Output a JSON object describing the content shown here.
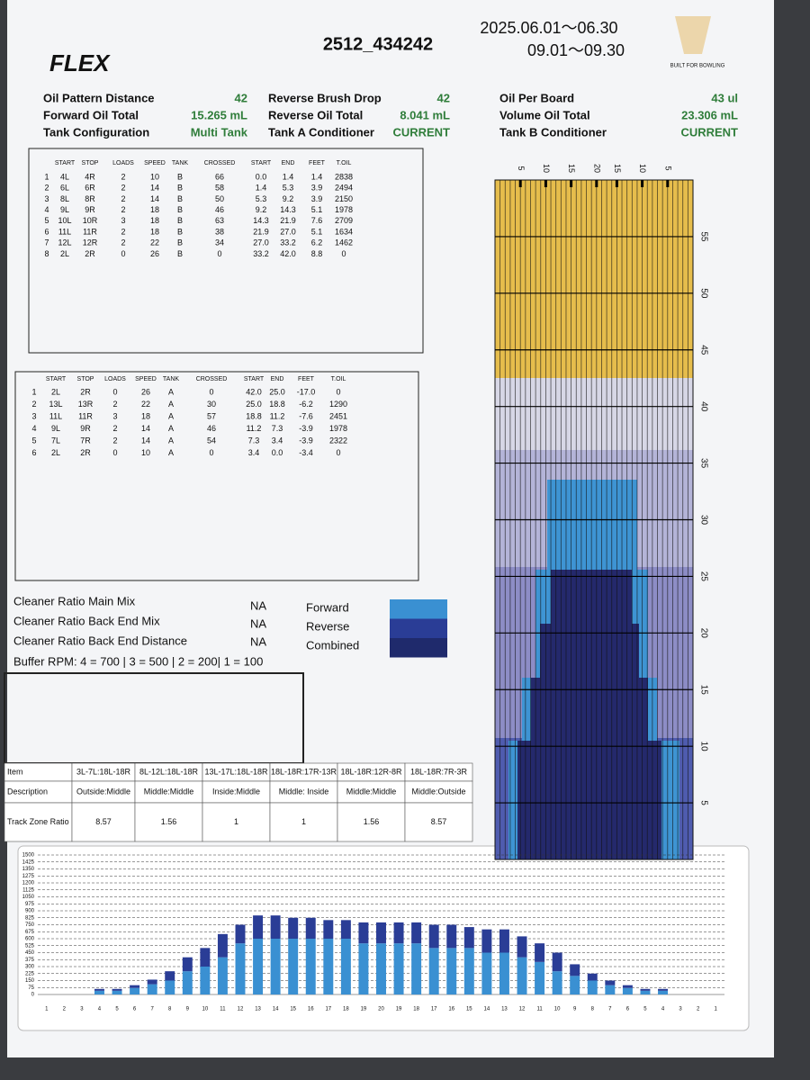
{
  "header": {
    "logo": "FLEX",
    "title": "2512_434242",
    "dates": [
      "2025.06.01～06.30",
      "09.01～09.30"
    ],
    "brand": "BUILT FOR BOWLING"
  },
  "summary": [
    {
      "label": "Oil Pattern Distance",
      "value": "42"
    },
    {
      "label": "Forward Oil Total",
      "value": "15.265 mL"
    },
    {
      "label": "Tank Configuration",
      "value": "Multi Tank"
    },
    {
      "label": "Reverse Brush Drop",
      "value": "42"
    },
    {
      "label": "Reverse Oil Total",
      "value": "8.041 mL"
    },
    {
      "label": "Tank A Conditioner",
      "value": "CURRENT"
    },
    {
      "label": "Oil Per Board",
      "value": "43 ul"
    },
    {
      "label": "Volume Oil Total",
      "value": "23.306 mL"
    },
    {
      "label": "Tank B Conditioner",
      "value": "CURRENT"
    }
  ],
  "forward_table": {
    "headers": [
      "START",
      "STOP",
      "LOADS",
      "SPEED",
      "TANK",
      "CROSSED",
      "START",
      "END",
      "FEET",
      "T.OIL"
    ],
    "rows": [
      [
        "1",
        "4L",
        "4R",
        "2",
        "10",
        "B",
        "66",
        "0.0",
        "1.4",
        "1.4",
        "2838"
      ],
      [
        "2",
        "6L",
        "6R",
        "2",
        "14",
        "B",
        "58",
        "1.4",
        "5.3",
        "3.9",
        "2494"
      ],
      [
        "3",
        "8L",
        "8R",
        "2",
        "14",
        "B",
        "50",
        "5.3",
        "9.2",
        "3.9",
        "2150"
      ],
      [
        "4",
        "9L",
        "9R",
        "2",
        "18",
        "B",
        "46",
        "9.2",
        "14.3",
        "5.1",
        "1978"
      ],
      [
        "5",
        "10L",
        "10R",
        "3",
        "18",
        "B",
        "63",
        "14.3",
        "21.9",
        "7.6",
        "2709"
      ],
      [
        "6",
        "11L",
        "11R",
        "2",
        "18",
        "B",
        "38",
        "21.9",
        "27.0",
        "5.1",
        "1634"
      ],
      [
        "7",
        "12L",
        "12R",
        "2",
        "22",
        "B",
        "34",
        "27.0",
        "33.2",
        "6.2",
        "1462"
      ],
      [
        "8",
        "2L",
        "2R",
        "0",
        "26",
        "B",
        "0",
        "33.2",
        "42.0",
        "8.8",
        "0"
      ]
    ]
  },
  "reverse_table": {
    "headers": [
      "START",
      "STOP",
      "LOADS",
      "SPEED",
      "TANK",
      "CROSSED",
      "START",
      "END",
      "FEET",
      "T.OIL"
    ],
    "rows": [
      [
        "1",
        "2L",
        "2R",
        "0",
        "26",
        "A",
        "0",
        "42.0",
        "25.0",
        "-17.0",
        "0"
      ],
      [
        "2",
        "13L",
        "13R",
        "2",
        "22",
        "A",
        "30",
        "25.0",
        "18.8",
        "-6.2",
        "1290"
      ],
      [
        "3",
        "11L",
        "11R",
        "3",
        "18",
        "A",
        "57",
        "18.8",
        "11.2",
        "-7.6",
        "2451"
      ],
      [
        "4",
        "9L",
        "9R",
        "2",
        "14",
        "A",
        "46",
        "11.2",
        "7.3",
        "-3.9",
        "1978"
      ],
      [
        "5",
        "7L",
        "7R",
        "2",
        "14",
        "A",
        "54",
        "7.3",
        "3.4",
        "-3.9",
        "2322"
      ],
      [
        "6",
        "2L",
        "2R",
        "0",
        "10",
        "A",
        "0",
        "3.4",
        "0.0",
        "-3.4",
        "0"
      ]
    ]
  },
  "cleaner": [
    {
      "label": "Cleaner Ratio Main Mix",
      "value": "NA"
    },
    {
      "label": "Cleaner Ratio Back End Mix",
      "value": "NA"
    },
    {
      "label": "Cleaner Ratio Back End Distance",
      "value": "NA"
    }
  ],
  "legend": [
    {
      "name": "Forward",
      "color": "#3a90d2"
    },
    {
      "name": "Reverse",
      "color": "#2a3d96"
    },
    {
      "name": "Combined",
      "color": "#1f2a6c"
    }
  ],
  "buffer_rpm": "Buffer RPM: 4 = 700 | 3 = 500 | 2 = 200| 1 = 100",
  "zone_table": {
    "rows": [
      [
        "Item",
        "3L-7L:18L-18R",
        "8L-12L:18L-18R",
        "13L-17L:18L-18R",
        "18L-18R:17R-13R",
        "18L-18R:12R-8R",
        "18L-18R:7R-3R"
      ],
      [
        "Description",
        "Outside:Middle",
        "Middle:Middle",
        "Inside:Middle",
        "Middle: Inside",
        "Middle:Middle",
        "Middle:Outside"
      ],
      [
        "Track Zone Ratio",
        "8.57",
        "1.56",
        "1",
        "1",
        "1.56",
        "8.57"
      ]
    ]
  },
  "lane_chart": {
    "type": "pattern",
    "xlim": [
      0,
      39
    ],
    "xticks": [
      5,
      10,
      15,
      20,
      {
        "value": 24,
        "label": "15"
      },
      {
        "value": 29,
        "label": "10"
      },
      {
        "value": 34,
        "label": "5"
      }
    ],
    "ylim": [
      0,
      60
    ],
    "yticks": [
      5,
      10,
      15,
      20,
      25,
      30,
      35,
      40,
      45,
      50,
      55
    ]
  },
  "chart_data": {
    "type": "stacked-bar",
    "categories": [
      1,
      2,
      3,
      4,
      5,
      6,
      7,
      8,
      9,
      10,
      11,
      12,
      13,
      14,
      15,
      16,
      17,
      18,
      19,
      20,
      19,
      18,
      17,
      16,
      15,
      14,
      13,
      12,
      11,
      10,
      9,
      8,
      7,
      6,
      5,
      4,
      3,
      2,
      1
    ],
    "series": [
      {
        "name": "Forward",
        "color": "#3a90d2",
        "values": [
          0,
          0,
          0,
          40,
          40,
          70,
          110,
          150,
          250,
          300,
          400,
          550,
          600,
          600,
          600,
          600,
          600,
          600,
          550,
          550,
          550,
          550,
          500,
          500,
          500,
          450,
          450,
          400,
          350,
          250,
          200,
          150,
          100,
          70,
          40,
          40,
          0,
          0,
          0
        ]
      },
      {
        "name": "Reverse",
        "color": "#2a3d96",
        "values": [
          0,
          0,
          0,
          20,
          20,
          30,
          50,
          100,
          150,
          200,
          250,
          200,
          250,
          250,
          225,
          225,
          200,
          200,
          225,
          225,
          225,
          225,
          250,
          250,
          225,
          250,
          250,
          225,
          200,
          200,
          125,
          75,
          50,
          30,
          20,
          20,
          0,
          0,
          0
        ]
      }
    ],
    "ylim": [
      0,
      1500
    ],
    "yticks": [
      0,
      75,
      150,
      225,
      300,
      375,
      450,
      525,
      600,
      675,
      750,
      825,
      900,
      975,
      1050,
      1125,
      1200,
      1275,
      1350,
      1425,
      1500
    ],
    "grid": true
  }
}
